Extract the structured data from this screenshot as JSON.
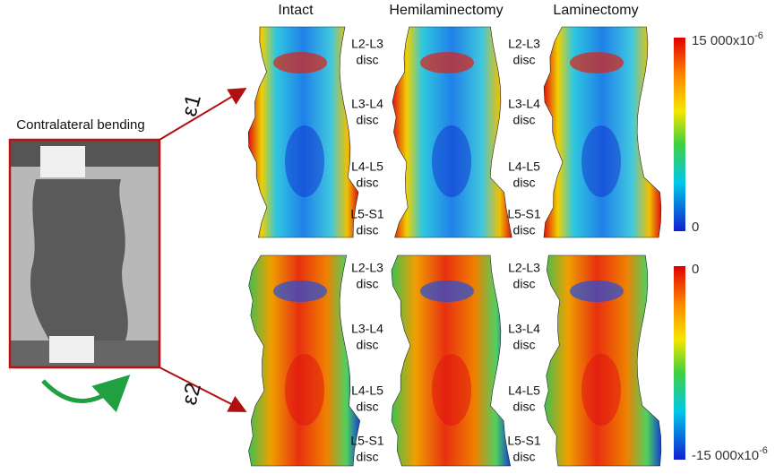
{
  "figure": {
    "loading_label": "Contralateral bending",
    "columns": [
      "Intact",
      "Hemilaminectomy",
      "Laminectomy"
    ],
    "rows": [
      {
        "strain": "ε1",
        "discs_a": [
          {
            "level": "L2-L3",
            "word": "disc"
          },
          {
            "level": "L3-L4",
            "word": "disc"
          },
          {
            "level": "L4-L5",
            "word": "disc"
          },
          {
            "level": "L5-S1",
            "word": "disc"
          }
        ],
        "discs_b": [
          {
            "level": "L2-L3",
            "word": "disc"
          },
          {
            "level": "L3-L4",
            "word": "disc"
          },
          {
            "level": "L4-L5",
            "word": "disc"
          },
          {
            "level": "L5-S1",
            "word": "disc"
          }
        ],
        "scale_top": {
          "text": "15 000x10",
          "exponent": "-6"
        },
        "scale_bottom": {
          "text": "0"
        }
      },
      {
        "strain": "ε2",
        "discs_a": [
          {
            "level": "L2-L3",
            "word": "disc"
          },
          {
            "level": "L3-L4",
            "word": "disc"
          },
          {
            "level": "L4-L5",
            "word": "disc"
          },
          {
            "level": "L5-S1",
            "word": "disc"
          }
        ],
        "discs_b": [
          {
            "level": "L2-L3",
            "word": "disc"
          },
          {
            "level": "L3-L4",
            "word": "disc"
          },
          {
            "level": "L4-L5",
            "word": "disc"
          },
          {
            "level": "L5-S1",
            "word": "disc"
          }
        ],
        "scale_top": {
          "text": "0"
        },
        "scale_bottom": {
          "text": "-15 000x10",
          "exponent": "-6"
        }
      }
    ]
  }
}
